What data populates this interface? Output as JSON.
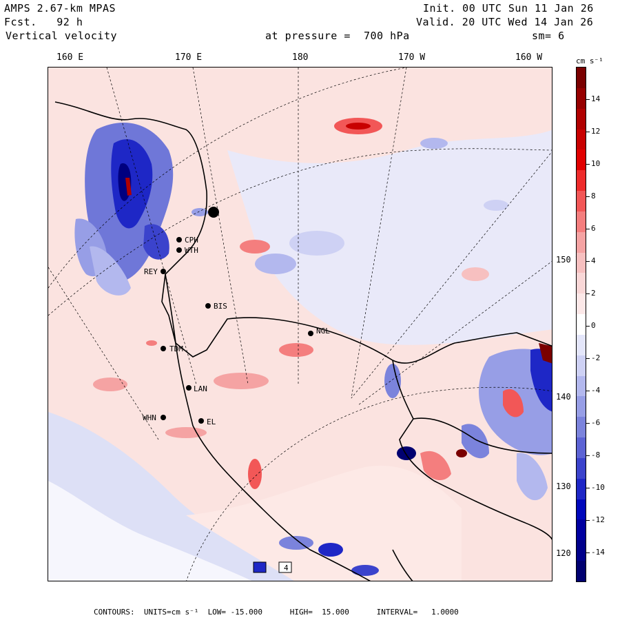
{
  "header": {
    "model": "AMPS 2.67-km MPAS",
    "forecast": "Fcst.   92 h",
    "field": "Vertical velocity",
    "init": "Init. 00 UTC Sun 11 Jan 26",
    "valid": "Valid. 20 UTC Wed 14 Jan 26",
    "pressure": "at pressure =  700 hPa",
    "smoothing": "sm= 6"
  },
  "longitude_labels": [
    "160 E",
    "170 E",
    "180",
    "170 W",
    "160 W"
  ],
  "side_labels": [
    "150 W",
    "140 W",
    "130 W",
    "120 W"
  ],
  "stations": [
    {
      "code": "CPH"
    },
    {
      "code": "WTH"
    },
    {
      "code": "REY"
    },
    {
      "code": "BIS"
    },
    {
      "code": "TDM"
    },
    {
      "code": "NGL"
    },
    {
      "code": "LAN"
    },
    {
      "code": "WHN"
    },
    {
      "code": "EL"
    }
  ],
  "inset_label": "4",
  "colorbar": {
    "units": "cm s⁻¹",
    "ticks": [
      "14",
      "12",
      "10",
      "8",
      "6",
      "4",
      "2",
      "0",
      "-2",
      "-4",
      "-6",
      "-8",
      "-10",
      "-12",
      "-14"
    ],
    "colors": [
      "#7a0000",
      "#960000",
      "#b00000",
      "#c80000",
      "#e00000",
      "#ee2b2b",
      "#f25757",
      "#f47e7e",
      "#f5a3a3",
      "#f7c0c0",
      "#f9d7d7",
      "#fce8e8",
      "#ffffff",
      "#e4e6fa",
      "#ced1f4",
      "#b3b8ee",
      "#979ee6",
      "#7b83dc",
      "#5c63d4",
      "#3b43cc",
      "#1e27c6",
      "#0008bb",
      "#0000a0",
      "#00008a",
      "#000070"
    ]
  },
  "footer": {
    "contours": "CONTOURS:  UNITS=cm s⁻¹  LOW= -15.000      HIGH=  15.000      INTERVAL=   1.0000"
  }
}
